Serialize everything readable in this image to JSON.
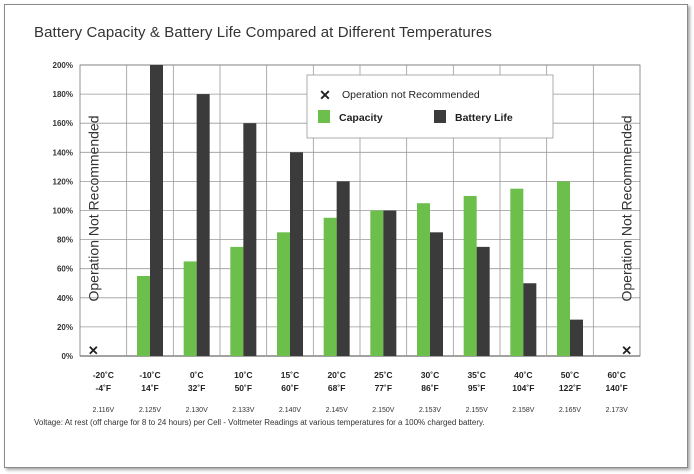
{
  "chart_data": {
    "type": "bar",
    "title": "Battery Capacity & Battery Life Compared at Different Temperatures",
    "categories": [
      {
        "c": "-20˚C",
        "f": "-4˚F"
      },
      {
        "c": "-10˚C",
        "f": "14˚F"
      },
      {
        "c": "0˚C",
        "f": "32˚F"
      },
      {
        "c": "10˚C",
        "f": "50˚F"
      },
      {
        "c": "15˚C",
        "f": "60˚F"
      },
      {
        "c": "20˚C",
        "f": "68˚F"
      },
      {
        "c": "25˚C",
        "f": "77˚F"
      },
      {
        "c": "30˚C",
        "f": "86˚F"
      },
      {
        "c": "35˚C",
        "f": "95˚F"
      },
      {
        "c": "40˚C",
        "f": "104˚F"
      },
      {
        "c": "50˚C",
        "f": "122˚F"
      },
      {
        "c": "60˚C",
        "f": "140˚F"
      }
    ],
    "voltages": [
      "2.116V",
      "2.125V",
      "2.130V",
      "2.133V",
      "2.140V",
      "2.145V",
      "2.150V",
      "2.153V",
      "2.155V",
      "2.158V",
      "2.165V",
      "2.173V"
    ],
    "series": [
      {
        "name": "Capacity",
        "color": "#6cbf4b",
        "values": [
          null,
          55,
          65,
          75,
          85,
          95,
          100,
          105,
          110,
          115,
          120,
          null
        ]
      },
      {
        "name": "Battery Life",
        "color": "#3b3b3b",
        "values": [
          null,
          200,
          180,
          160,
          140,
          120,
          100,
          85,
          75,
          50,
          25,
          null
        ]
      }
    ],
    "not_recommended_categories": [
      0,
      11
    ],
    "y_ticks": [
      "0%",
      "20%",
      "40%",
      "60%",
      "80%",
      "100%",
      "120%",
      "140%",
      "160%",
      "180%",
      "200%"
    ],
    "ylim": [
      0,
      200
    ],
    "grid": true,
    "legend_position": "top-right",
    "legend": {
      "marker_text": "Operation not Recommended"
    },
    "side_label": "Operation Not Recommended",
    "footnote": "Voltage:  At rest (off charge for 8 to 24 hours) per Cell - Voltmeter Readings at various temperatures for a 100% charged battery."
  }
}
